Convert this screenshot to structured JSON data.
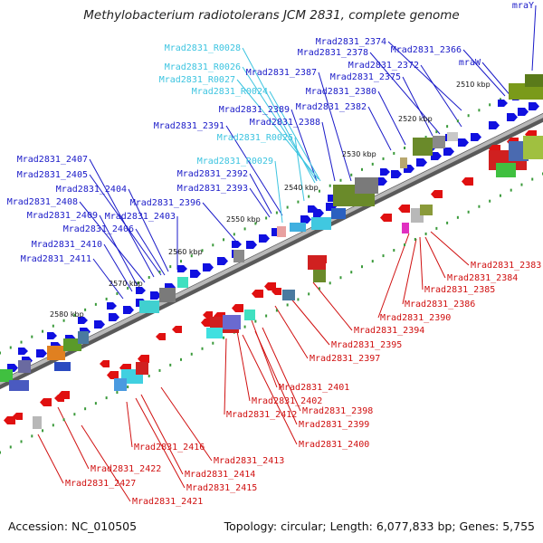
{
  "title": "Methylobacterium radiotolerans JCM 2831, complete genome",
  "footer": {
    "accession": "Accession: NC_010505",
    "summary": "Topology: circular; Length: 6,077,833 bp; Genes: 5,755"
  },
  "colors": {
    "forward_gene": "#1010e0",
    "reverse_gene": "#e01010",
    "forward_label": "#1a1ac8",
    "rna_label": "#3cc4e0",
    "reverse_label": "#d01010",
    "backbone": "#8a8a8a",
    "tick": "#3a9a3a"
  },
  "scale_labels": [
    "2510 kbp",
    "2520 kbp",
    "2530 kbp",
    "2540 kbp",
    "2550 kbp",
    "2560 kbp",
    "2570 kbp",
    "2580 kbp"
  ],
  "forward_labels": [
    "mraY",
    "Mrad2831_2374",
    "Mrad2831_2366",
    "mraW",
    "Mrad2831_2378",
    "Mrad2831_2372",
    "Mrad2831_2387",
    "Mrad2831_2375",
    "Mrad2831_2380",
    "Mrad2831_2382",
    "Mrad2831_2389",
    "Mrad2831_2391",
    "Mrad2831_2388",
    "Mrad2831_2407",
    "Mrad2831_2392",
    "Mrad2831_2405",
    "Mrad2831_2404",
    "Mrad2831_2393",
    "Mrad2831_2408",
    "Mrad2831_2396",
    "Mrad2831_2409",
    "Mrad2831_2403",
    "Mrad2831_2406",
    "Mrad2831_2410",
    "Mrad2831_2411"
  ],
  "rna_labels": [
    "Mrad2831_R0028",
    "Mrad2831_R0026",
    "Mrad2831_R0027",
    "Mrad2831_R0024",
    "Mrad2831_R0025",
    "Mrad2831_R0029"
  ],
  "reverse_labels": [
    "Mrad2831_2383",
    "Mrad2831_2384",
    "Mrad2831_2385",
    "Mrad2831_2386",
    "Mrad2831_2390",
    "Mrad2831_2394",
    "Mrad2831_2395",
    "Mrad2831_2397",
    "Mrad2831_2401",
    "Mrad2831_2402",
    "Mrad2831_2412",
    "Mrad2831_2398",
    "Mrad2831_2399",
    "Mrad2831_2400",
    "Mrad2831_2416",
    "Mrad2831_2413",
    "Mrad2831_2414",
    "Mrad2831_2422",
    "Mrad2831_2415",
    "Mrad2831_2427",
    "Mrad2831_2421"
  ]
}
